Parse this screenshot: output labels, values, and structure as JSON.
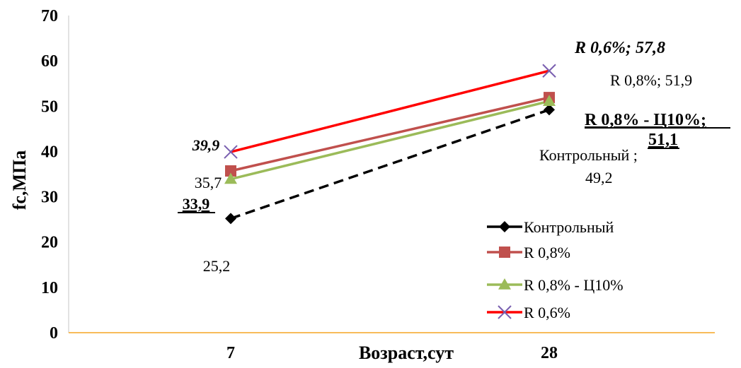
{
  "chart_data": {
    "type": "line",
    "xlabel": "Возраст,сут",
    "ylabel": "fc,МПа",
    "ylim": [
      0,
      70
    ],
    "yticks": [
      "0",
      "10",
      "20",
      "30",
      "40",
      "50",
      "60",
      "70"
    ],
    "categories": [
      "7",
      "28"
    ],
    "grid": false,
    "legend_position": "right",
    "series": [
      {
        "name": "Контрольный",
        "values": [
          25.2,
          49.2
        ],
        "color": "#000000",
        "line_style": "dashed",
        "marker": "diamond",
        "data_labels": [
          "25,2",
          "Контрольный ; 49,2"
        ]
      },
      {
        "name": "R 0,8%",
        "values": [
          35.7,
          51.9
        ],
        "color": "#c0504d",
        "line_style": "solid",
        "marker": "square",
        "data_labels": [
          "35,7",
          "R 0,8%; 51,9"
        ]
      },
      {
        "name": "R 0,8%  - Ц10%",
        "values": [
          33.9,
          51.1
        ],
        "color": "#9bbb59",
        "line_style": "solid",
        "marker": "triangle",
        "data_labels": [
          "33,9",
          "R 0,8%  - Ц10%; 51,1"
        ]
      },
      {
        "name": "R 0,6%",
        "values": [
          39.9,
          57.8
        ],
        "color": "#ff0000",
        "line_style": "solid",
        "marker": "x",
        "data_labels": [
          "39,9",
          "R 0,6%; 57,8"
        ]
      }
    ],
    "annotations": {
      "ctrl_7": "25,2",
      "r08_7": "35,7",
      "r08c_7": "33,9",
      "r06_7": "39,9",
      "r06_28": "R 0,6%; 57,8",
      "r08_28": "R 0,8%; 51,9",
      "r08c_28_line1": "R 0,8%  - Ц10%;",
      "r08c_28_line2": "51,1",
      "ctrl_28_line1": "Контрольный ;",
      "ctrl_28_line2": "49,2"
    },
    "colors": {
      "x_axis": "#f5a623",
      "y_axis": "#d9d9d9"
    }
  }
}
